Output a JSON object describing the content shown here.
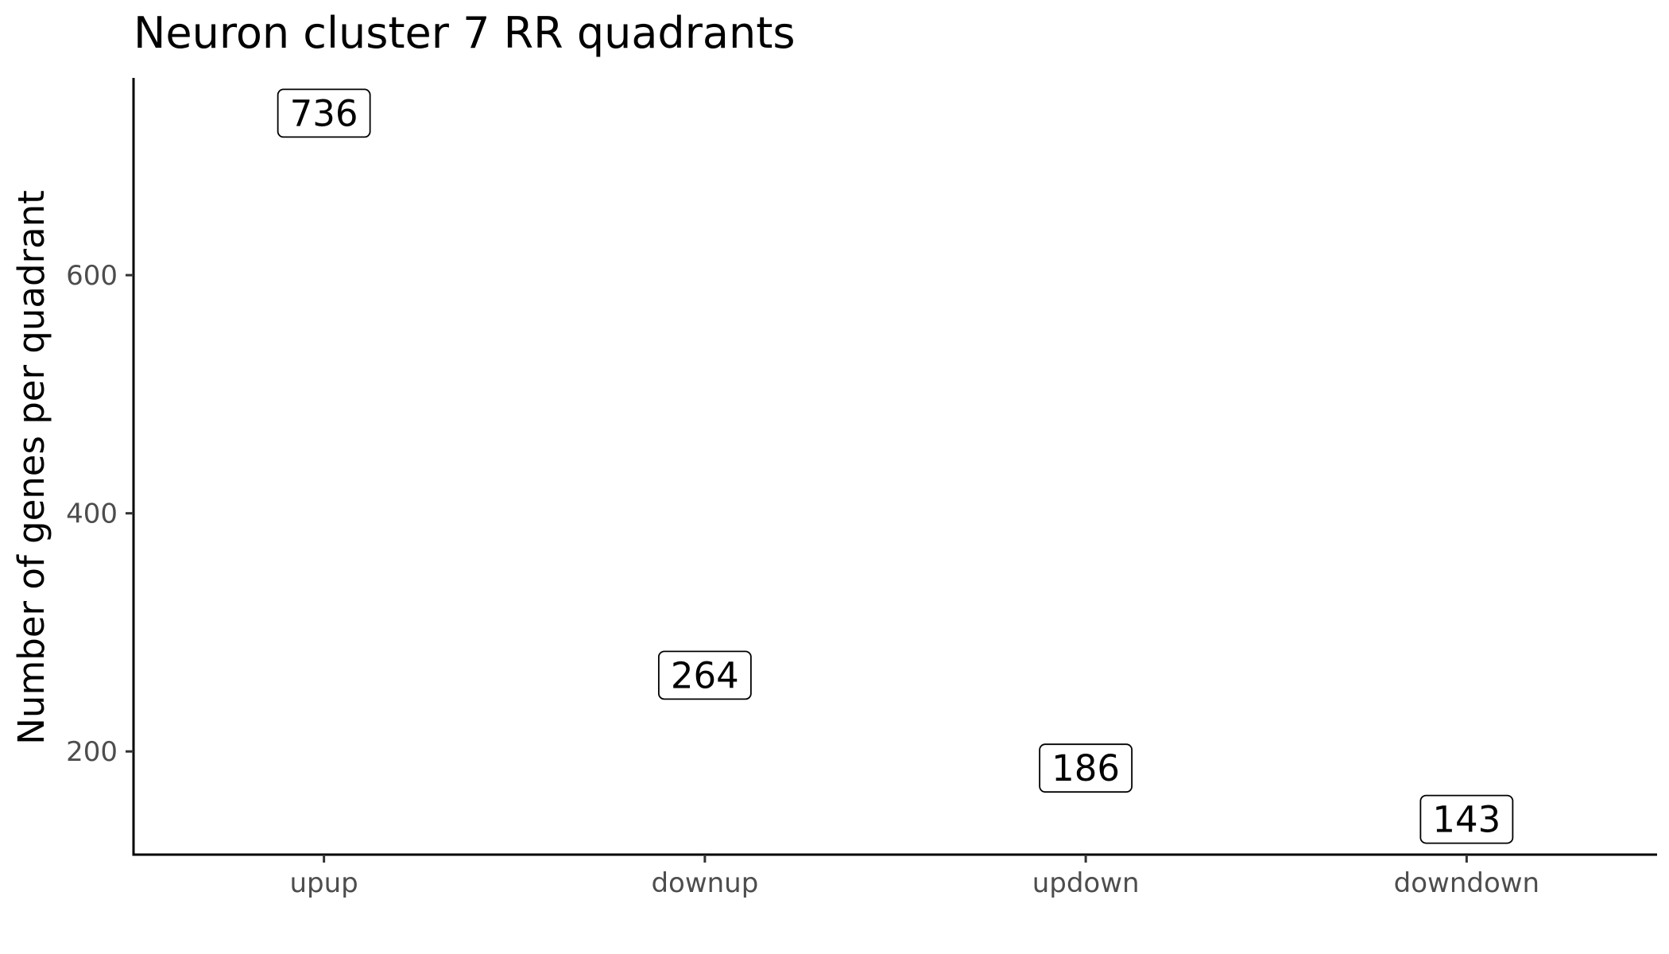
{
  "chart_data": {
    "type": "scatter",
    "title": "Neuron cluster 7 RR quadrants",
    "xlabel": "",
    "ylabel": "Number of genes per quadrant",
    "categories": [
      "upup",
      "downup",
      "updown",
      "downdown"
    ],
    "values": [
      736,
      264,
      186,
      143
    ],
    "data_labels": [
      "736",
      "264",
      "186",
      "143"
    ],
    "y_ticks": [
      200,
      400,
      600
    ],
    "y_tick_labels": [
      "200",
      "400",
      "600"
    ],
    "ylim": [
      113.35,
      765.65
    ],
    "grid": false,
    "legend": "none",
    "colors": {
      "axis": "#000000",
      "tick_label": "#4d4d4d",
      "label_fill": "#ffffff",
      "label_border": "#000000"
    }
  }
}
